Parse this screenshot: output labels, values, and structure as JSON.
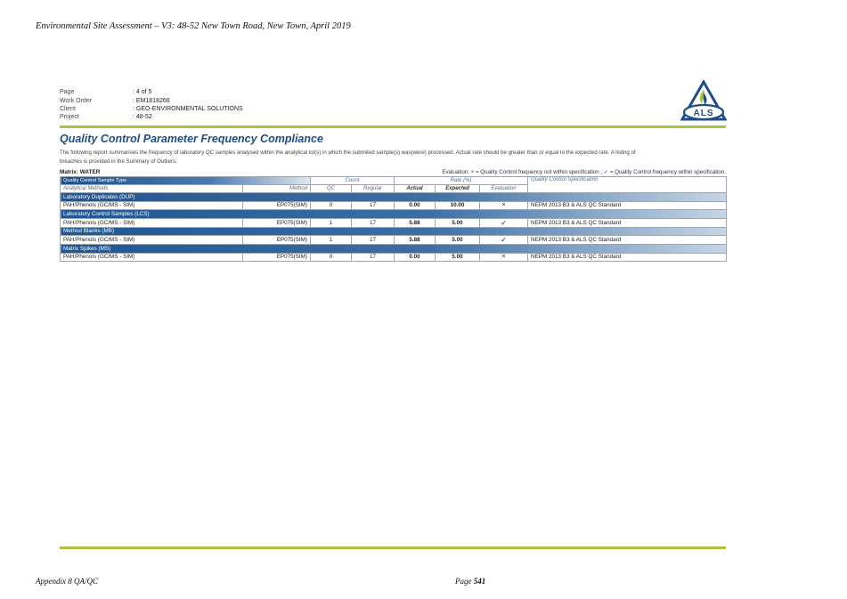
{
  "doc_header": "Environmental Site Assessment – V3: 48-52 New Town Road, New Town, April 2019",
  "meta": [
    {
      "label": "Page",
      "value": ": 4 of 5"
    },
    {
      "label": "Work Order",
      "value": ": EM1818266"
    },
    {
      "label": "Client",
      "value": ": GEO-ENVIRONMENTAL SOLUTIONS"
    },
    {
      "label": "Project",
      "value": ": 48-52"
    }
  ],
  "logo_text": "ALS",
  "colors": {
    "accent_green": "#a9c23f",
    "title_blue": "#1d4f86"
  },
  "title": "Quality Control Parameter Frequency Compliance",
  "description": "The following report summarises the frequency of laboratory QC samples analysed within the analytical lot(s) in which the submited sample(s) was(were) processed. Actual rate should be greater than or equal to the expected rate. A listing of breaches is provided in the Summary of Outliers.",
  "matrix_label": "Matrix: ",
  "matrix_value": "WATER",
  "evaluation_legend": "Evaluation: × = Quality Control frequency not within specification ; ✓ = Quality Control frequency within specification.",
  "table": {
    "header": {
      "qc_sample_type": "Quality Control Sample Type",
      "analytical_methods": "Analytical Methods",
      "method": "Method",
      "count": "Count",
      "qc": "QC",
      "regular": "Regular",
      "rate": "Rate (%)",
      "actual": "Actual",
      "expected": "Expected",
      "evaluation": "Evaluation",
      "qc_specification": "Quality Control Specification"
    },
    "sections": [
      {
        "title": "Laboratory Duplicates (DUP)",
        "analyte": "PAH/Phenols (GC/MS - SIM)",
        "method": "EP075(SIM)",
        "qc": "0",
        "regular": "17",
        "actual": "0.00",
        "expected": "10.00",
        "evaluation": "×",
        "spec": "NEPM 2013 B3 & ALS QC Standard"
      },
      {
        "title": "Laboratory Control Samples (LCS)",
        "analyte": "PAH/Phenols (GC/MS - SIM)",
        "method": "EP075(SIM)",
        "qc": "1",
        "regular": "17",
        "actual": "5.88",
        "expected": "5.00",
        "evaluation": "✓",
        "spec": "NEPM 2013 B3 & ALS QC Standard"
      },
      {
        "title": "Method Blanks (MB)",
        "analyte": "PAH/Phenols (GC/MS - SIM)",
        "method": "EP075(SIM)",
        "qc": "1",
        "regular": "17",
        "actual": "5.88",
        "expected": "5.00",
        "evaluation": "✓",
        "spec": "NEPM 2013 B3 & ALS QC Standard"
      },
      {
        "title": "Matrix Spikes (MS)",
        "analyte": "PAH/Phenols (GC/MS - SIM)",
        "method": "EP075(SIM)",
        "qc": "0",
        "regular": "17",
        "actual": "0.00",
        "expected": "5.00",
        "evaluation": "×",
        "spec": "NEPM 2013 B3 & ALS QC Standard"
      }
    ]
  },
  "footer": {
    "left": "Appendix 8 QA/QC",
    "page_prefix": "Page ",
    "page_number": "541"
  }
}
